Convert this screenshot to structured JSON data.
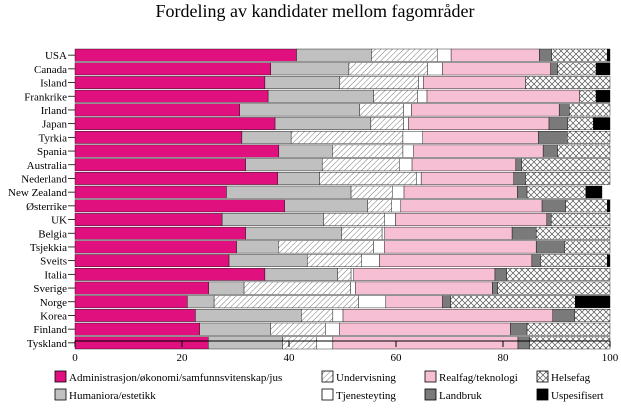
{
  "chart_data": {
    "type": "bar",
    "orientation": "horizontal",
    "stacked": true,
    "title": "Fordeling av kandidater mellom fagområder",
    "xlim": [
      0,
      100
    ],
    "xticks": [
      0,
      20,
      40,
      60,
      80,
      100
    ],
    "xlabel": "",
    "ylabel": "",
    "grid": false,
    "legend_position": "bottom",
    "categories": [
      "USA",
      "Canada",
      "Island",
      "Frankrike",
      "Irland",
      "Japan",
      "Tyrkia",
      "Spania",
      "Australia",
      "Nederland",
      "New Zealand",
      "Østerrike",
      "UK",
      "Belgia",
      "Tsjekkia",
      "Sveits",
      "Italia",
      "Sverige",
      "Norge",
      "Korea",
      "Finland",
      "Tyskland"
    ],
    "series": [
      {
        "name": "Administrasjon/økonomi/samfunnsvitenskap/jus",
        "color": "#e0117f",
        "pattern": "solid",
        "values": [
          41.4,
          36.6,
          35.5,
          36.1,
          30.8,
          37.4,
          31.2,
          38.1,
          31.9,
          37.9,
          28.3,
          39.2,
          27.5,
          31.9,
          30.2,
          28.8,
          35.5,
          25.0,
          21.0,
          22.5,
          23.3,
          24.9
        ]
      },
      {
        "name": "Humaniora/estetikk",
        "color": "#c0c0c0",
        "pattern": "solid",
        "values": [
          14.0,
          14.6,
          14.0,
          19.7,
          22.4,
          17.9,
          9.2,
          10.0,
          14.3,
          7.8,
          23.3,
          15.5,
          19.0,
          17.9,
          7.8,
          14.6,
          13.6,
          6.6,
          5.0,
          19.8,
          13.3,
          13.9
        ]
      },
      {
        "name": "Undervisning",
        "color": "#ffffff",
        "pattern": "diagonal",
        "values": [
          12.3,
          14.7,
          14.7,
          8.2,
          8.2,
          6.1,
          20.9,
          13.2,
          14.4,
          18.1,
          7.7,
          4.5,
          11.4,
          7.6,
          17.8,
          10.2,
          2.5,
          19.9,
          27.0,
          5.9,
          10.2,
          6.4
        ]
      },
      {
        "name": "Tjenesteyting",
        "color": "#ffffff",
        "pattern": "solid",
        "values": [
          2.6,
          2.8,
          0.9,
          1.8,
          1.5,
          0.9,
          3.7,
          2.0,
          2.4,
          0.9,
          2.2,
          1.7,
          2.0,
          0.5,
          2.0,
          3.3,
          0.5,
          0.9,
          5.1,
          1.9,
          2.6,
          3.0
        ]
      },
      {
        "name": "Realfag/teknologi",
        "color": "#f7bfd3",
        "pattern": "solid",
        "values": [
          16.5,
          20.2,
          19.1,
          28.5,
          27.6,
          26.3,
          21.6,
          24.2,
          19.4,
          17.3,
          21.2,
          26.4,
          28.3,
          23.8,
          28.4,
          28.5,
          26.4,
          25.6,
          10.6,
          39.2,
          32.0,
          34.6
        ]
      },
      {
        "name": "Landbruk",
        "color": "#7a7a7a",
        "pattern": "solid",
        "values": [
          2.3,
          1.3,
          0,
          0,
          1.9,
          3.5,
          5.4,
          2.7,
          1.1,
          2.2,
          1.8,
          4.4,
          0.8,
          4.5,
          5.3,
          1.6,
          2.2,
          1.0,
          1.5,
          4.1,
          3.1,
          2.2
        ]
      },
      {
        "name": "Helsefag",
        "color": "#ffffff",
        "pattern": "crosshatch",
        "values": [
          10.4,
          7.2,
          15.8,
          3.1,
          7.6,
          4.8,
          8.0,
          9.8,
          16.5,
          15.8,
          11.0,
          7.8,
          11.0,
          13.8,
          8.5,
          12.5,
          19.3,
          21.0,
          23.3,
          6.6,
          15.5,
          15.0
        ]
      },
      {
        "name": "Uspesifisert",
        "color": "#000000",
        "pattern": "solid",
        "values": [
          0.5,
          2.6,
          0,
          2.6,
          0,
          3.9,
          0,
          0,
          0,
          0,
          3.0,
          0.5,
          0,
          0,
          0,
          0.5,
          0,
          0,
          6.5,
          0,
          0,
          0
        ]
      }
    ]
  }
}
